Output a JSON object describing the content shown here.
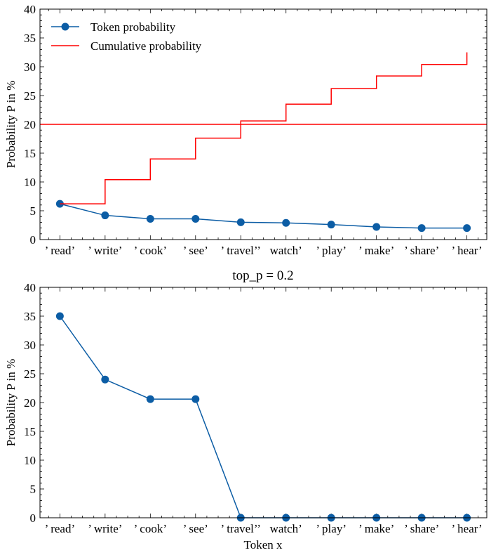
{
  "colors": {
    "token": "#0C5DA5",
    "cumulative": "#FF0000",
    "axis": "#000000"
  },
  "chart_data": [
    {
      "type": "line",
      "title": "",
      "xlabel": "",
      "ylabel": "Probability P in %",
      "ylim": [
        0,
        40
      ],
      "yticks": [
        0,
        5,
        10,
        15,
        20,
        25,
        30,
        35,
        40
      ],
      "categories": [
        "’ read’",
        "’ write’",
        "’ cook’",
        "’ see’",
        "’ travel’’",
        "watch’",
        "’ play’",
        "’ make’",
        "’ share’",
        "’ hear’"
      ],
      "legend_position": "top-left",
      "series": [
        {
          "name": "Token probability",
          "style": "line-marker",
          "values": [
            6.2,
            4.2,
            3.6,
            3.6,
            3.0,
            2.9,
            2.6,
            2.2,
            2.0,
            2.0
          ]
        },
        {
          "name": "Cumulative probability",
          "style": "steps-post",
          "values": [
            6.2,
            10.4,
            14.0,
            17.6,
            20.6,
            23.5,
            26.2,
            28.4,
            30.4,
            32.5
          ]
        }
      ],
      "hline": 20
    },
    {
      "type": "line",
      "title": "top_p = 0.2",
      "xlabel": "Token x",
      "ylabel": "Probability P in %",
      "ylim": [
        0,
        40
      ],
      "yticks": [
        0,
        5,
        10,
        15,
        20,
        25,
        30,
        35,
        40
      ],
      "categories": [
        "’ read’",
        "’ write’",
        "’ cook’",
        "’ see’",
        "’ travel’’",
        "watch’",
        "’ play’",
        "’ make’",
        "’ share’",
        "’ hear’"
      ],
      "series": [
        {
          "style": "line-marker",
          "values": [
            35.0,
            24.0,
            20.6,
            20.6,
            0,
            0,
            0,
            0,
            0,
            0
          ]
        }
      ]
    }
  ]
}
